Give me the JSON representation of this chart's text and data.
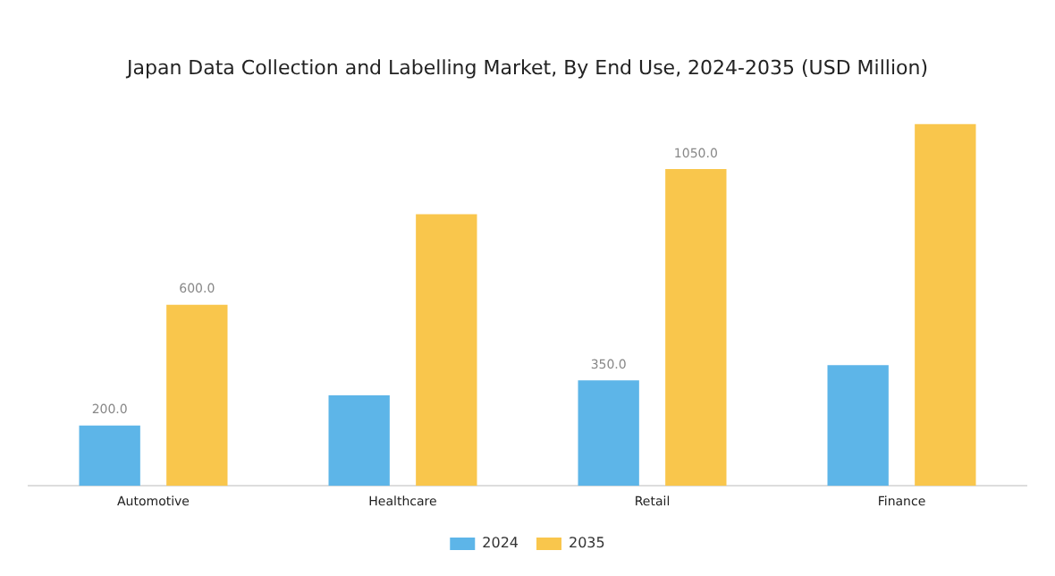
{
  "chart_data": {
    "type": "bar",
    "title": "Japan Data Collection and Labelling Market, By End Use, 2024-2035 (USD Million)",
    "categories": [
      "Automotive",
      "Healthcare",
      "Retail",
      "Finance"
    ],
    "series": [
      {
        "name": "2024",
        "color": "#5db5e8",
        "values": [
          200,
          300,
          350,
          400
        ],
        "value_labels": [
          "200.0",
          null,
          "350.0",
          null
        ]
      },
      {
        "name": "2035",
        "color": "#f9c64c",
        "values": [
          600,
          900,
          1050,
          1200
        ],
        "value_labels": [
          "600.0",
          null,
          "1050.0",
          null
        ]
      }
    ],
    "legend": "bottom",
    "grid": false,
    "tick_labels": "x"
  }
}
